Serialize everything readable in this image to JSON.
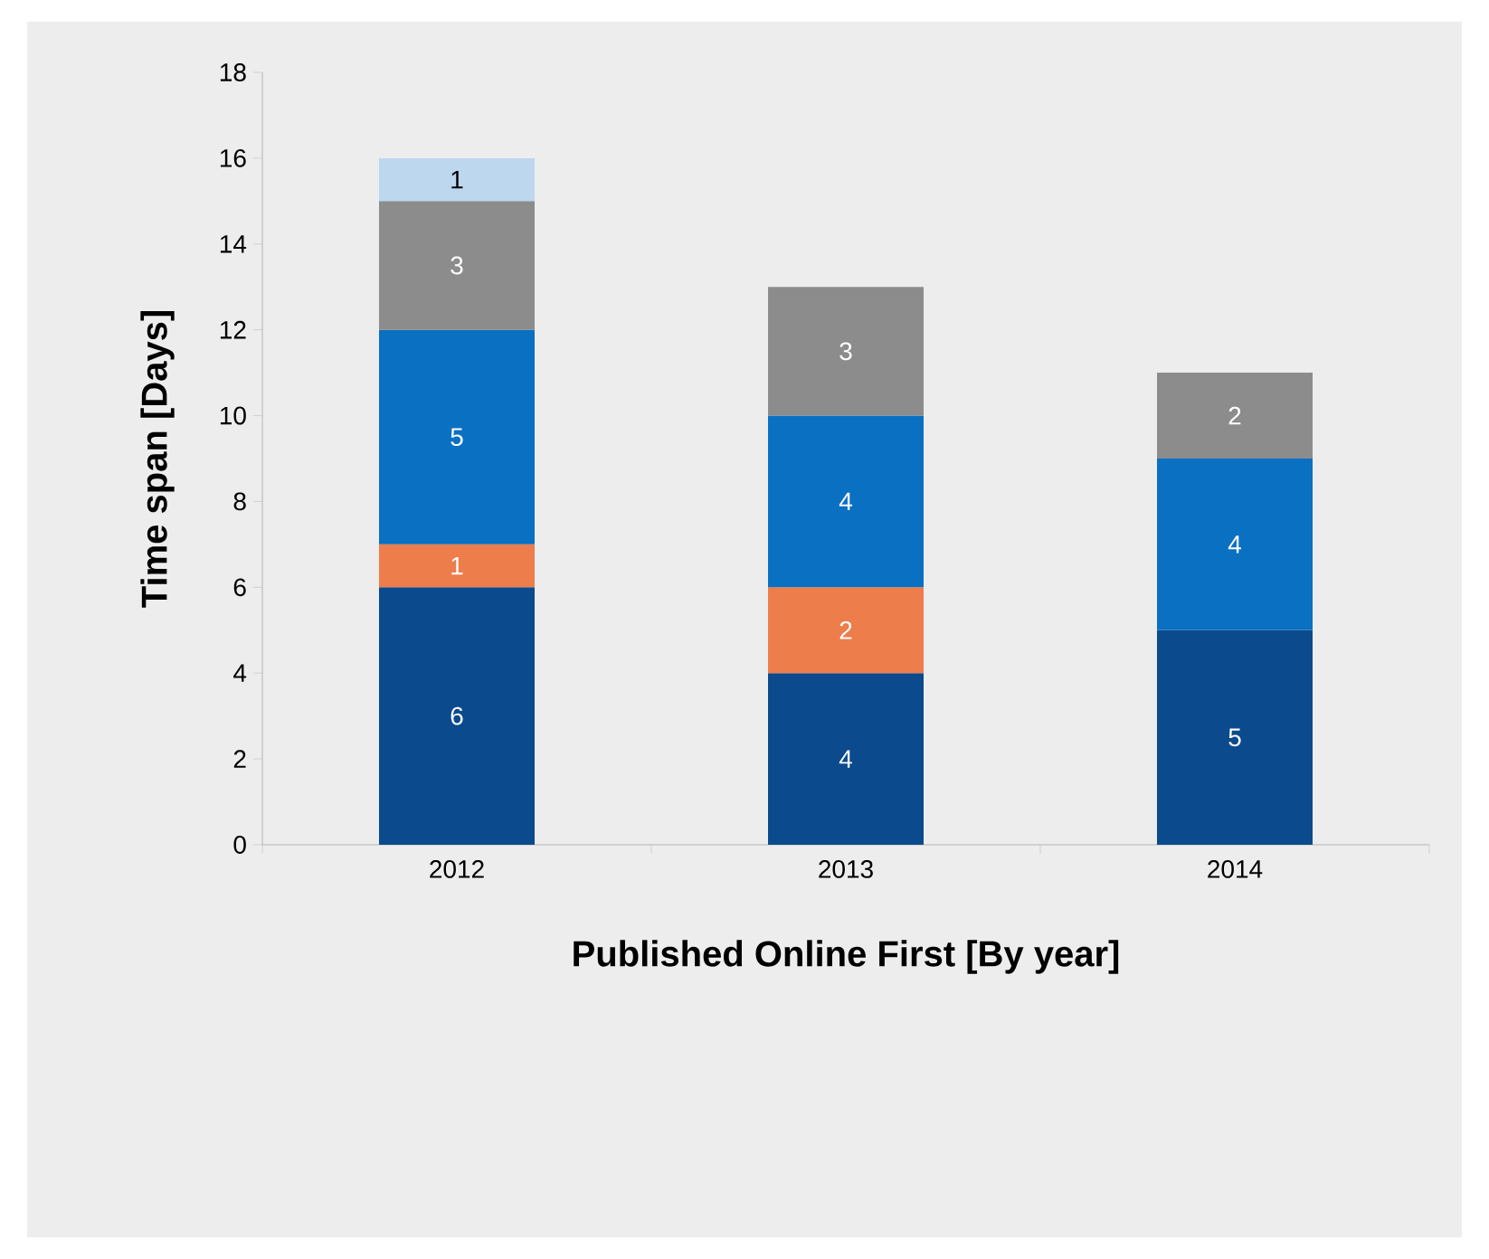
{
  "chart_data": {
    "type": "bar",
    "stacked": true,
    "xlabel": "Published Online First [By year]",
    "ylabel": "Time  span  [Days]",
    "categories": [
      "2012",
      "2013",
      "2014"
    ],
    "series": [
      {
        "color": "#0b4a8c",
        "values": [
          6,
          4,
          5
        ]
      },
      {
        "color": "#ed7d4b",
        "values": [
          1,
          2,
          null
        ]
      },
      {
        "color": "#0a70c2",
        "values": [
          5,
          4,
          4
        ]
      },
      {
        "color": "#8c8c8c",
        "values": [
          3,
          3,
          2
        ]
      },
      {
        "color": "#bdd7ee",
        "values": [
          1,
          null,
          null
        ]
      }
    ],
    "ylim": [
      0,
      18
    ],
    "yticks": [
      0,
      2,
      4,
      6,
      8,
      10,
      12,
      14,
      16,
      18
    ],
    "data_labels": true,
    "grid": false
  }
}
